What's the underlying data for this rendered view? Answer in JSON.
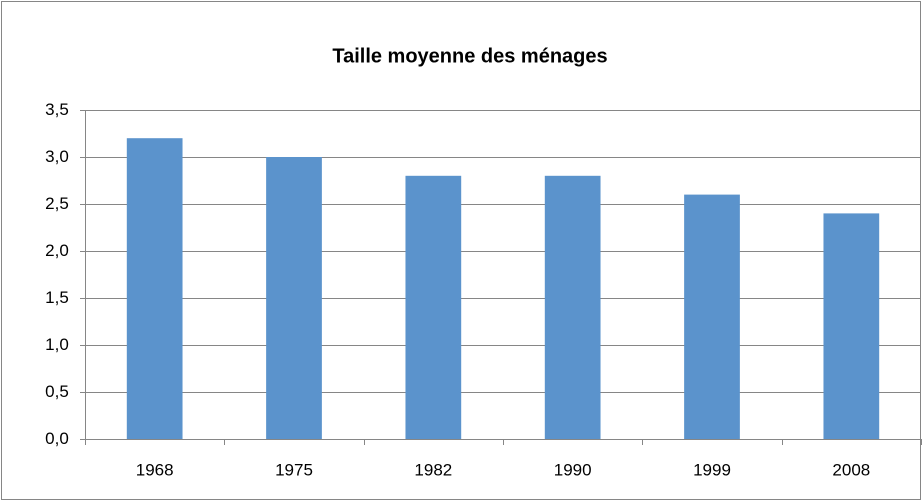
{
  "chart_data": {
    "type": "bar",
    "title": "Taille moyenne des ménages",
    "categories": [
      "1968",
      "1975",
      "1982",
      "1990",
      "1999",
      "2008"
    ],
    "values": [
      3.2,
      3.0,
      2.8,
      2.8,
      2.6,
      2.4
    ],
    "color": "#5b93cc",
    "ylim": [
      0,
      3.5
    ],
    "yticks": [
      {
        "value": 0,
        "label": "0,0"
      },
      {
        "value": 0.5,
        "label": "0,5"
      },
      {
        "value": 1,
        "label": "1,0"
      },
      {
        "value": 1.5,
        "label": "1,5"
      },
      {
        "value": 2,
        "label": "2,0"
      },
      {
        "value": 2.5,
        "label": "2,5"
      },
      {
        "value": 3,
        "label": "3,0"
      },
      {
        "value": 3.5,
        "label": "3,5"
      }
    ],
    "grid": true
  }
}
